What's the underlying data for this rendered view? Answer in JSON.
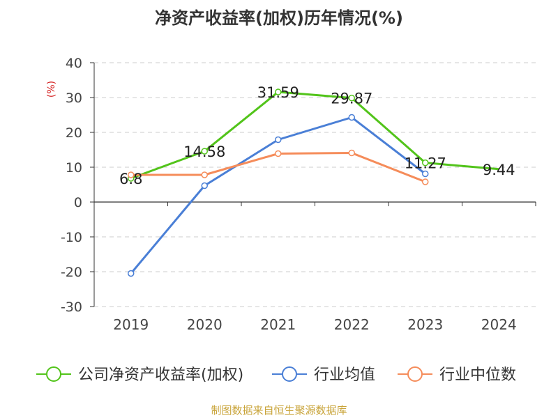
{
  "title": "净资产收益率(加权)历年情况(%)",
  "footer": "制图数据来自恒生聚源数据库",
  "colors": {
    "company": "#52c41a",
    "industry_avg": "#4a7fd6",
    "industry_median": "#f58c5a",
    "unit": "#d42020",
    "footer": "#c9a43a"
  },
  "chart_data": {
    "type": "line",
    "categories": [
      "2019",
      "2020",
      "2021",
      "2022",
      "2023",
      "2024"
    ],
    "ylim": [
      -30,
      40
    ],
    "yticks": [
      "40",
      "30",
      "20",
      "10",
      "0",
      "-10",
      "-20",
      "-30"
    ],
    "unit_label": "(%)",
    "grid": true,
    "legend_position": "bottom",
    "series": [
      {
        "name": "公司净资产收益率(加权)",
        "key": "company",
        "values": [
          6.8,
          14.58,
          31.59,
          29.87,
          11.27,
          9.44
        ],
        "data_labels": [
          "6.8",
          "14.58",
          "31.59",
          "29.87",
          "11.27",
          "9.44"
        ],
        "markers": [
          true,
          true,
          true,
          true,
          true,
          false
        ]
      },
      {
        "name": "行业均值",
        "key": "industry_avg",
        "values": [
          -20.5,
          4.7,
          17.9,
          24.3,
          8.1,
          null
        ],
        "data_labels": null,
        "markers": [
          true,
          true,
          true,
          true,
          true,
          false
        ]
      },
      {
        "name": "行业中位数",
        "key": "industry_median",
        "values": [
          7.8,
          7.8,
          13.9,
          14.1,
          5.8,
          null
        ],
        "data_labels": null,
        "markers": [
          true,
          true,
          true,
          true,
          true,
          false
        ]
      }
    ]
  }
}
